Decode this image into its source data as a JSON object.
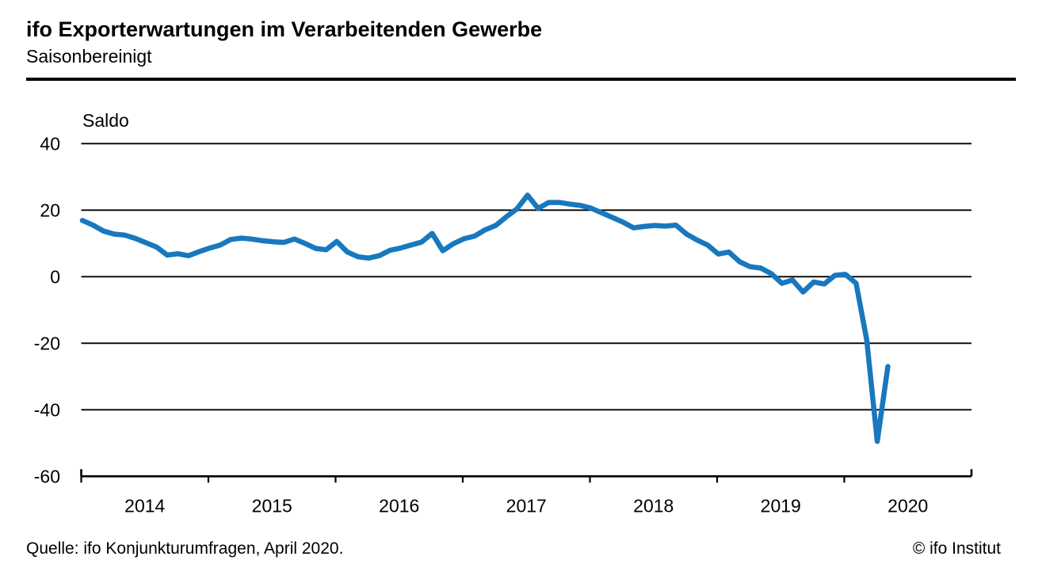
{
  "header": {
    "title": "ifo Exporterwartungen im Verarbeitenden Gewerbe",
    "subtitle": "Saisonbereinigt"
  },
  "footer": {
    "source": "Quelle: ifo Konjunkturumfragen, April 2020.",
    "copyright": "© ifo Institut"
  },
  "colors": {
    "line": "#1878BE",
    "axis": "#000000",
    "text": "#000000",
    "background": "#FFFFFF"
  },
  "chart_data": {
    "type": "line",
    "title": "ifo Exporterwartungen im Verarbeitenden Gewerbe",
    "subtitle": "Saisonbereinigt",
    "unit_label": "Saldo",
    "xlabel": "",
    "ylabel": "Saldo",
    "ylim": [
      -60,
      45
    ],
    "grid": "horizontal",
    "legend": "none",
    "y_ticks": [
      40,
      20,
      0,
      -20,
      -40,
      -60
    ],
    "x_years": [
      "2014",
      "2015",
      "2016",
      "2017",
      "2018",
      "2019",
      "2020"
    ],
    "x_start": "2014-01",
    "x_end": "2020-05",
    "frequency": "monthly",
    "series": [
      {
        "name": "Exporterwartungen (Saldo, saisonbereinigt)",
        "values": [
          16.9,
          15.5,
          13.7,
          12.8,
          12.5,
          11.5,
          10.2,
          8.9,
          6.5,
          6.9,
          6.3,
          7.5,
          8.6,
          9.5,
          11.2,
          11.6,
          11.3,
          10.8,
          10.5,
          10.3,
          11.3,
          10.0,
          8.5,
          8.1,
          10.6,
          7.4,
          6.0,
          5.6,
          6.3,
          7.9,
          8.6,
          9.5,
          10.4,
          13.0,
          7.8,
          9.9,
          11.4,
          12.2,
          14.1,
          15.4,
          18.0,
          20.4,
          24.5,
          20.5,
          22.3,
          22.3,
          21.8,
          21.4,
          20.6,
          19.2,
          17.8,
          16.4,
          14.7,
          15.1,
          15.4,
          15.2,
          15.5,
          12.8,
          11.0,
          9.5,
          6.8,
          7.4,
          4.5,
          3.0,
          2.6,
          0.9,
          -2.0,
          -1.0,
          -4.6,
          -1.6,
          -2.2,
          0.4,
          0.7,
          -2.0,
          -19.0,
          -49.5,
          -27.0
        ]
      }
    ]
  }
}
